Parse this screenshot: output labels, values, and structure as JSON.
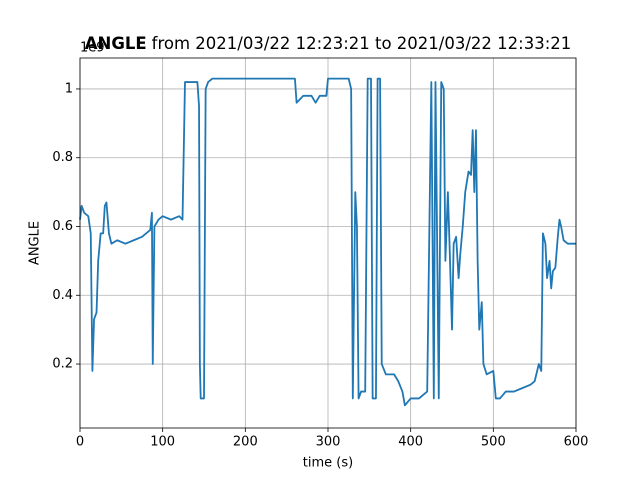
{
  "chart_data": {
    "type": "line",
    "title_parts": [
      "ANGLE",
      "from 2021/03/22 12:23:21 to 2021/03/22 12:33:21"
    ],
    "x_label": "time (s)",
    "y_label": "ANGLE",
    "y_offset_label": "1e9",
    "xlim": [
      0,
      600
    ],
    "xticks": [
      0,
      100,
      200,
      300,
      400,
      500,
      600
    ],
    "ylim": [
      0.014,
      1.09
    ],
    "yticks": [
      0.2,
      0.4,
      0.6,
      0.8,
      1.0
    ],
    "grid": true,
    "x": [
      0,
      2,
      5,
      10,
      13,
      15,
      17,
      20,
      22,
      25,
      28,
      30,
      32,
      35,
      38,
      45,
      55,
      65,
      75,
      85,
      87,
      88,
      90,
      95,
      100,
      110,
      120,
      124,
      127,
      135,
      142,
      144,
      145,
      146,
      150,
      152,
      155,
      160,
      180,
      200,
      220,
      240,
      260,
      262,
      270,
      280,
      285,
      290,
      298,
      300,
      325,
      328,
      330,
      333,
      335,
      337,
      340,
      345,
      348,
      352,
      354,
      358,
      360,
      363,
      365,
      370,
      380,
      385,
      390,
      393,
      400,
      410,
      420,
      425,
      428,
      430,
      434,
      437,
      440,
      442,
      445,
      447,
      450,
      452,
      455,
      458,
      460,
      463,
      466,
      470,
      473,
      475,
      477,
      479,
      481,
      483,
      486,
      488,
      492,
      500,
      503,
      508,
      515,
      525,
      535,
      545,
      550,
      555,
      558,
      560,
      563,
      565,
      568,
      570,
      572,
      575,
      578,
      580,
      582,
      585,
      590,
      600
    ],
    "series": [
      {
        "name": "ANGLE",
        "color": "#1f77b4",
        "values": [
          0.62,
          0.66,
          0.64,
          0.63,
          0.58,
          0.18,
          0.33,
          0.35,
          0.5,
          0.58,
          0.58,
          0.66,
          0.67,
          0.58,
          0.55,
          0.56,
          0.55,
          0.56,
          0.57,
          0.59,
          0.64,
          0.2,
          0.6,
          0.62,
          0.63,
          0.62,
          0.63,
          0.62,
          1.02,
          1.02,
          1.02,
          0.95,
          0.2,
          0.1,
          0.1,
          1.0,
          1.02,
          1.03,
          1.03,
          1.03,
          1.03,
          1.03,
          1.03,
          0.96,
          0.98,
          0.98,
          0.96,
          0.98,
          0.98,
          1.03,
          1.03,
          1.0,
          0.1,
          0.7,
          0.6,
          0.1,
          0.12,
          0.12,
          1.03,
          1.03,
          0.1,
          0.1,
          1.03,
          1.03,
          0.2,
          0.17,
          0.17,
          0.15,
          0.12,
          0.08,
          0.1,
          0.1,
          0.12,
          1.02,
          0.1,
          1.02,
          0.1,
          1.02,
          1.0,
          0.5,
          0.7,
          0.55,
          0.3,
          0.55,
          0.57,
          0.45,
          0.52,
          0.6,
          0.7,
          0.76,
          0.75,
          0.88,
          0.7,
          0.88,
          0.5,
          0.3,
          0.38,
          0.2,
          0.17,
          0.18,
          0.1,
          0.1,
          0.12,
          0.12,
          0.13,
          0.14,
          0.15,
          0.2,
          0.18,
          0.58,
          0.55,
          0.45,
          0.5,
          0.42,
          0.47,
          0.48,
          0.57,
          0.62,
          0.6,
          0.56,
          0.55,
          0.55
        ]
      }
    ]
  }
}
